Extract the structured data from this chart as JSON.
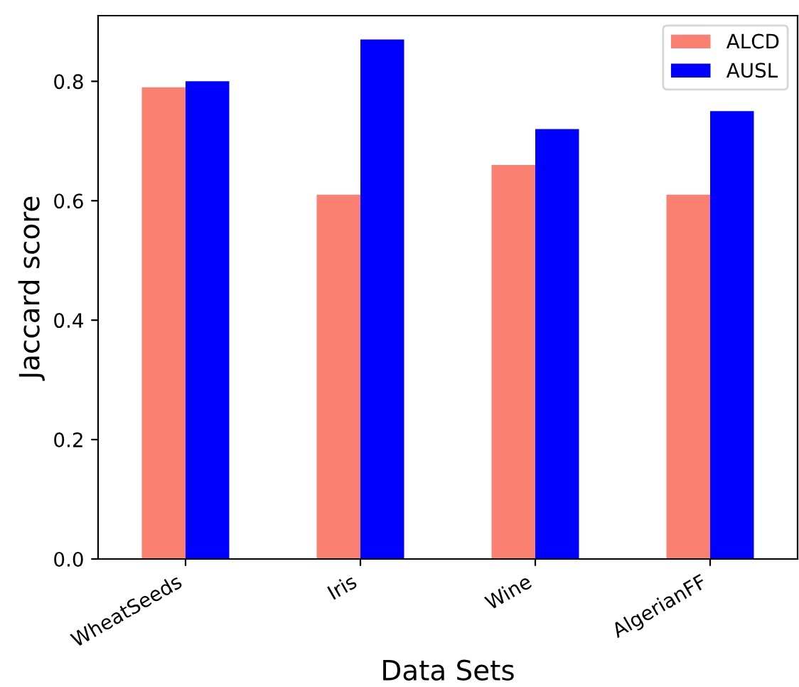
{
  "chart_data": {
    "type": "bar",
    "xlabel": "Data Sets",
    "ylabel": "Jaccard score",
    "categories": [
      "WheatSeeds",
      "Iris",
      "Wine",
      "AlgerianFF"
    ],
    "series": [
      {
        "name": "ALCD",
        "color": "#fa8072",
        "values": [
          0.79,
          0.61,
          0.66,
          0.61
        ]
      },
      {
        "name": "AUSL",
        "color": "#0000ff",
        "values": [
          0.8,
          0.87,
          0.72,
          0.75
        ]
      }
    ],
    "ylim": [
      0,
      0.91
    ],
    "yticks": [
      {
        "value": 0,
        "label": "0.0"
      },
      0.2,
      0.4,
      0.6,
      0.8
    ],
    "grid": false,
    "legend": "top right"
  }
}
